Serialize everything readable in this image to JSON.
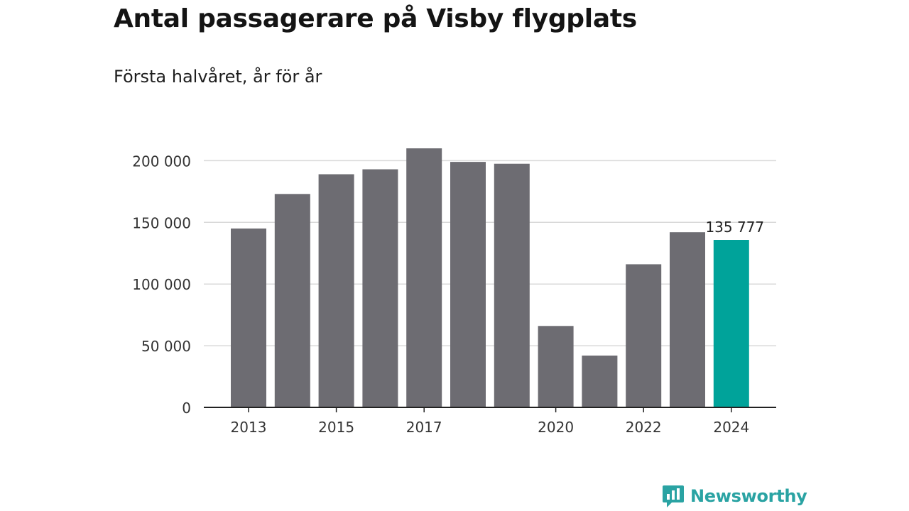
{
  "header": {
    "title": "Antal passagerare på Visby flygplats",
    "subtitle": "Första halvåret, år för år"
  },
  "brand": {
    "name": "Newsworthy",
    "icon": "newsworthy-logo-icon",
    "color": "#2aa3a3"
  },
  "chart_data": {
    "type": "bar",
    "title": "Antal passagerare på Visby flygplats",
    "subtitle": "Första halvåret, år för år",
    "xlabel": "",
    "ylabel": "",
    "categories": [
      "2013",
      "2014",
      "2015",
      "2016",
      "2017",
      "2018",
      "2019",
      "2020",
      "2021",
      "2022",
      "2023",
      "2024"
    ],
    "x_tick_labels": [
      "2013",
      "2015",
      "2017",
      "2020",
      "2022",
      "2024"
    ],
    "values": [
      145000,
      173000,
      189000,
      193000,
      210000,
      199000,
      197500,
      66000,
      42000,
      116000,
      142000,
      135777
    ],
    "highlight_index": 11,
    "highlight_label": "135 777",
    "ylim": [
      0,
      210000
    ],
    "y_ticks": [
      0,
      50000,
      100000,
      150000,
      200000
    ],
    "y_tick_labels": [
      "0",
      "50 000",
      "100 000",
      "150 000",
      "200 000"
    ],
    "grid": true,
    "colors": {
      "bar": "#6d6c72",
      "highlight": "#00a39a",
      "grid": "#d9d9d9",
      "axis": "#222222"
    }
  }
}
